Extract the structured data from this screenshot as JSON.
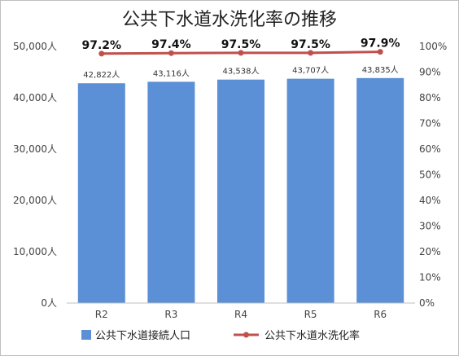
{
  "chart_data": {
    "type": "bar",
    "title": "公共下水道水洗化率の推移",
    "categories": [
      "R2",
      "R3",
      "R4",
      "R5",
      "R6"
    ],
    "series": [
      {
        "name": "公共下水道接続人口",
        "type": "bar",
        "axis": "left",
        "values": [
          42822,
          43116,
          43538,
          43707,
          43835
        ],
        "labels": [
          "42,822人",
          "43,116人",
          "43,538人",
          "43,707人",
          "43,835人"
        ],
        "color": "#5b8fd6"
      },
      {
        "name": "公共下水道水洗化率",
        "type": "line",
        "axis": "right",
        "values": [
          97.2,
          97.4,
          97.5,
          97.5,
          97.9
        ],
        "labels": [
          "97.2%",
          "97.4%",
          "97.5%",
          "97.5%",
          "97.9%"
        ],
        "color": "#c0504d"
      }
    ],
    "ylim": [
      0,
      50000
    ],
    "y_ticks": [
      "0人",
      "10,000人",
      "20,000人",
      "30,000人",
      "40,000人",
      "50,000人"
    ],
    "y2lim": [
      0,
      100
    ],
    "y2_ticks": [
      "0%",
      "10%",
      "20%",
      "30%",
      "40%",
      "50%",
      "60%",
      "70%",
      "80%",
      "90%",
      "100%"
    ],
    "grid": false,
    "legend": "bottom"
  }
}
